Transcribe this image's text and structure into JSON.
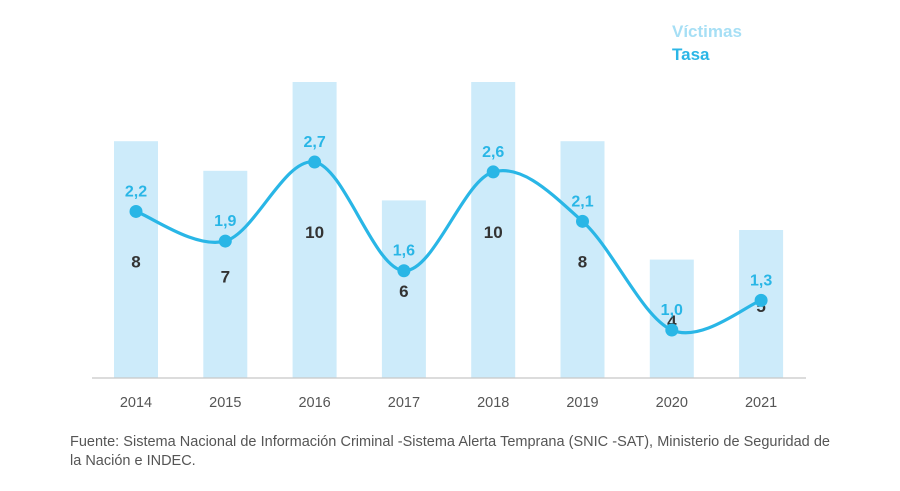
{
  "chart_data": {
    "type": "bar",
    "categories": [
      "2014",
      "2015",
      "2016",
      "2017",
      "2018",
      "2019",
      "2020",
      "2021"
    ],
    "series": [
      {
        "name": "Víctimas",
        "type": "bar",
        "values": [
          8,
          7,
          10,
          6,
          10,
          8,
          4,
          5
        ],
        "labels": [
          "8",
          "7",
          "10",
          "6",
          "10",
          "8",
          "4",
          "5"
        ],
        "color": "#cdebfa"
      },
      {
        "name": "Tasa",
        "type": "line",
        "values": [
          2.2,
          1.9,
          2.7,
          1.6,
          2.6,
          2.1,
          1.0,
          1.3
        ],
        "labels": [
          "2,2",
          "1,9",
          "2,7",
          "1,6",
          "2,6",
          "2,1",
          "1,0",
          "1,3"
        ],
        "color": "#29b6e6"
      }
    ],
    "legend": {
      "items": [
        "Víctimas",
        "Tasa"
      ],
      "position": "top-right"
    },
    "grid": false,
    "xlabel": "",
    "ylabel": ""
  },
  "source": "Fuente: Sistema Nacional de Información Criminal -Sistema Alerta Temprana (SNIC -SAT), Ministerio de Seguridad de la Nación e INDEC."
}
